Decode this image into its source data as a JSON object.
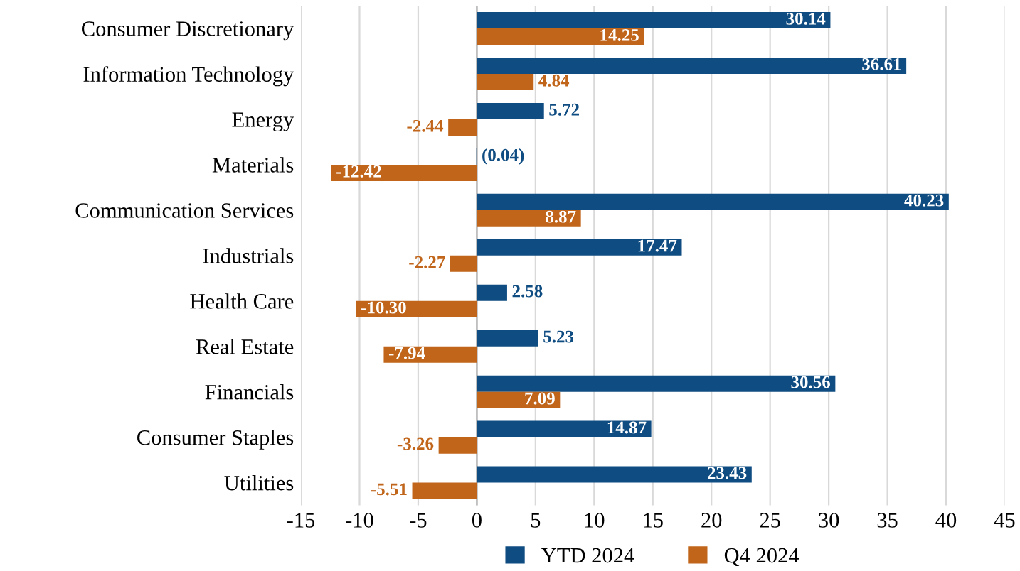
{
  "chart_data": {
    "type": "bar",
    "orientation": "horizontal",
    "categories": [
      "Consumer Discretionary",
      "Information Technology",
      "Energy",
      "Materials",
      "Communication Services",
      "Industrials",
      "Health Care",
      "Real Estate",
      "Financials",
      "Consumer Staples",
      "Utilities"
    ],
    "series": [
      {
        "name": "YTD 2024",
        "color": "#0f4c81",
        "values": [
          30.14,
          36.61,
          5.72,
          -0.04,
          40.23,
          17.47,
          2.58,
          5.23,
          30.56,
          14.87,
          23.43
        ],
        "value_labels": [
          "30.14",
          "36.61",
          "5.72",
          "(0.04)",
          "40.23",
          "17.47",
          "2.58",
          "5.23",
          "30.56",
          "14.87",
          "23.43"
        ]
      },
      {
        "name": "Q4 2024",
        "color": "#c0651a",
        "values": [
          14.25,
          4.84,
          -2.44,
          -12.42,
          8.87,
          -2.27,
          -10.3,
          -7.94,
          7.09,
          -3.26,
          -5.51
        ],
        "value_labels": [
          "14.25",
          "4.84",
          "-2.44",
          "-12.42",
          "8.87",
          "-2.27",
          "-10.30",
          "-7.94",
          "7.09",
          "-3.26",
          "-5.51"
        ]
      }
    ],
    "xlim": [
      -15,
      45
    ],
    "xticks": [
      -15,
      -10,
      -5,
      0,
      5,
      10,
      15,
      20,
      25,
      30,
      35,
      40,
      45
    ],
    "grid": "x",
    "legend": "bottom"
  }
}
